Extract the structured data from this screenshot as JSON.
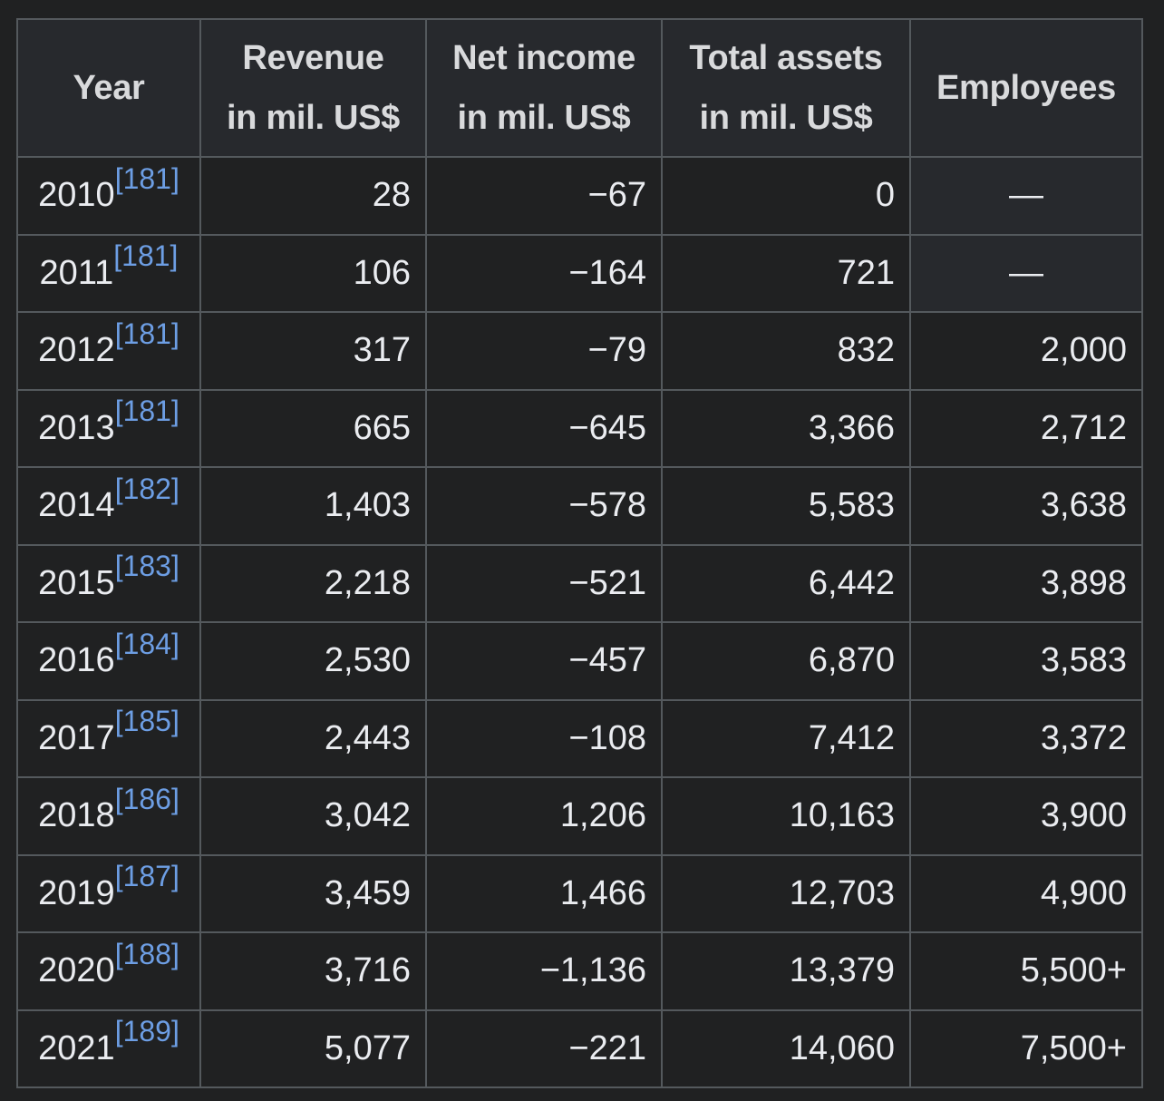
{
  "headers": {
    "year": "Year",
    "revenue_l1": "Revenue",
    "revenue_l2": "in mil. US$",
    "net_income_l1": "Net income",
    "net_income_l2": "in mil. US$",
    "total_assets_l1": "Total assets",
    "total_assets_l2": "in mil. US$",
    "employees": "Employees"
  },
  "rows": [
    {
      "year": "2010",
      "ref": "[181]",
      "revenue": "28",
      "net_income": "−67",
      "total_assets": "0",
      "employees": "—"
    },
    {
      "year": "2011",
      "ref": "[181]",
      "revenue": "106",
      "net_income": "−164",
      "total_assets": "721",
      "employees": "—"
    },
    {
      "year": "2012",
      "ref": "[181]",
      "revenue": "317",
      "net_income": "−79",
      "total_assets": "832",
      "employees": "2,000"
    },
    {
      "year": "2013",
      "ref": "[181]",
      "revenue": "665",
      "net_income": "−645",
      "total_assets": "3,366",
      "employees": "2,712"
    },
    {
      "year": "2014",
      "ref": "[182]",
      "revenue": "1,403",
      "net_income": "−578",
      "total_assets": "5,583",
      "employees": "3,638"
    },
    {
      "year": "2015",
      "ref": "[183]",
      "revenue": "2,218",
      "net_income": "−521",
      "total_assets": "6,442",
      "employees": "3,898"
    },
    {
      "year": "2016",
      "ref": "[184]",
      "revenue": "2,530",
      "net_income": "−457",
      "total_assets": "6,870",
      "employees": "3,583"
    },
    {
      "year": "2017",
      "ref": "[185]",
      "revenue": "2,443",
      "net_income": "−108",
      "total_assets": "7,412",
      "employees": "3,372"
    },
    {
      "year": "2018",
      "ref": "[186]",
      "revenue": "3,042",
      "net_income": "1,206",
      "total_assets": "10,163",
      "employees": "3,900"
    },
    {
      "year": "2019",
      "ref": "[187]",
      "revenue": "3,459",
      "net_income": "1,466",
      "total_assets": "12,703",
      "employees": "4,900"
    },
    {
      "year": "2020",
      "ref": "[188]",
      "revenue": "3,716",
      "net_income": "−1,136",
      "total_assets": "13,379",
      "employees": "5,500+"
    },
    {
      "year": "2021",
      "ref": "[189]",
      "revenue": "5,077",
      "net_income": "−221",
      "total_assets": "14,060",
      "employees": "7,500+"
    }
  ]
}
